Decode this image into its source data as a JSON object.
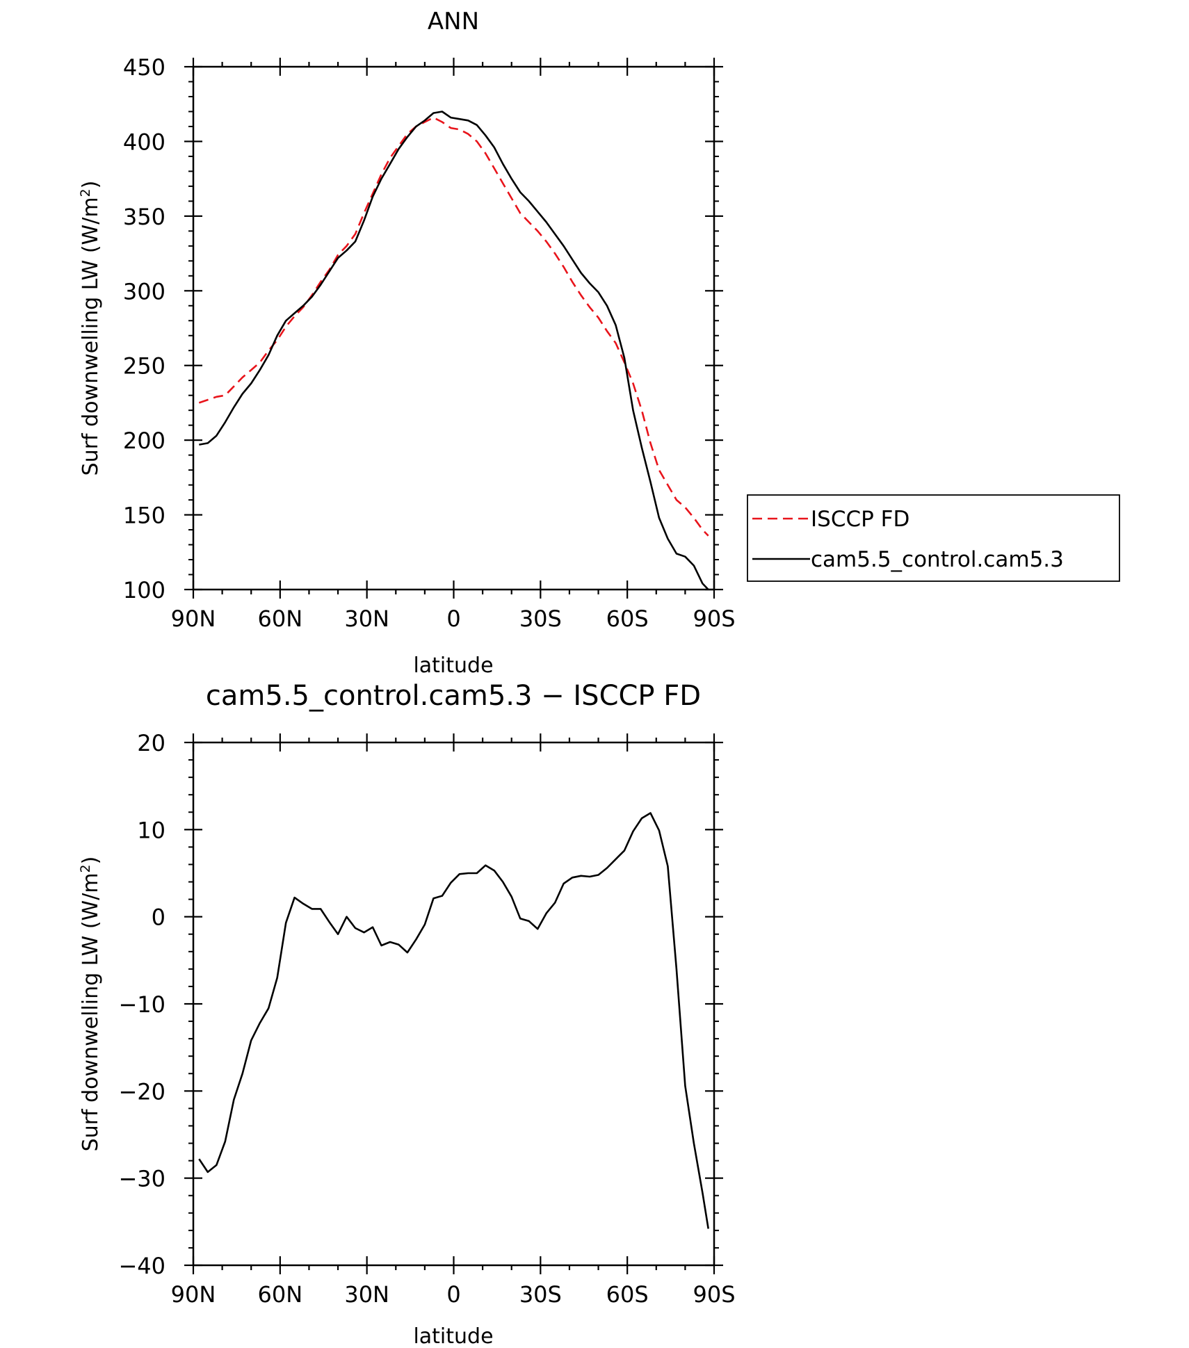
{
  "chart_data": [
    {
      "type": "line",
      "title": "ANN",
      "xlabel": "latitude",
      "ylabel": "Surf downwelling LW (W/m²)",
      "ylabel_main": "Surf downwelling LW (W/m",
      "ylabel_sup": "2",
      "ylabel_close": ")",
      "xlim": [
        90,
        -90
      ],
      "ylim": [
        100,
        450
      ],
      "x_ticks": [
        90,
        60,
        30,
        0,
        -30,
        -60,
        -90
      ],
      "x_tick_labels": [
        "90N",
        "60N",
        "30N",
        "0",
        "30S",
        "60S",
        "90S"
      ],
      "y_ticks": [
        100,
        150,
        200,
        250,
        300,
        350,
        400,
        450
      ],
      "y_tick_labels": [
        "100",
        "150",
        "200",
        "250",
        "300",
        "350",
        "400",
        "450"
      ],
      "legend_position": "right",
      "series": [
        {
          "name": "ISCCP FD",
          "color": "#e8141b",
          "style": "dashed",
          "x": [
            88,
            85,
            82,
            79,
            76,
            73,
            70,
            67,
            64,
            61,
            58,
            55,
            52,
            49,
            46,
            43,
            40,
            37,
            34,
            31,
            28,
            25,
            22,
            19,
            16,
            13,
            10,
            7,
            4,
            1,
            -2,
            -5,
            -8,
            -11,
            -14,
            -17,
            -20,
            -23,
            -26,
            -29,
            -32,
            -35,
            -38,
            -41,
            -44,
            -47,
            -50,
            -53,
            -56,
            -59,
            -62,
            -65,
            -68,
            -71,
            -74,
            -77,
            -80,
            -83,
            -86,
            -88
          ],
          "y": [
            225,
            227,
            229,
            230,
            236,
            242,
            247,
            252,
            260,
            267,
            276,
            283,
            289,
            297,
            306,
            314,
            324,
            330,
            338,
            352,
            365,
            378,
            389,
            397,
            405,
            410,
            413,
            416,
            413,
            409,
            408,
            405,
            400,
            392,
            382,
            372,
            362,
            352,
            346,
            340,
            333,
            325,
            316,
            306,
            297,
            289,
            282,
            273,
            265,
            252,
            238,
            220,
            198,
            180,
            170,
            160,
            155,
            148,
            140,
            136
          ]
        },
        {
          "name": "cam5.5_control.cam5.3",
          "color": "#000000",
          "style": "solid",
          "x": [
            88,
            85,
            82,
            79,
            76,
            73,
            70,
            67,
            64,
            61,
            58,
            55,
            52,
            49,
            46,
            43,
            40,
            37,
            34,
            31,
            28,
            25,
            22,
            19,
            16,
            13,
            10,
            7,
            4,
            1,
            -2,
            -5,
            -8,
            -11,
            -14,
            -17,
            -20,
            -23,
            -26,
            -29,
            -32,
            -35,
            -38,
            -41,
            -44,
            -47,
            -50,
            -53,
            -56,
            -59,
            -62,
            -65,
            -68,
            -71,
            -74,
            -77,
            -80,
            -83,
            -86,
            -88
          ],
          "y": [
            197,
            198,
            203,
            212,
            222,
            231,
            238,
            247,
            257,
            270,
            280,
            285,
            290,
            296,
            304,
            313,
            322,
            327,
            333,
            347,
            363,
            375,
            385,
            395,
            403,
            410,
            414,
            419,
            420,
            416,
            415,
            414,
            411,
            404,
            396,
            385,
            375,
            366,
            360,
            353,
            346,
            338,
            330,
            321,
            312,
            305,
            299,
            290,
            277,
            255,
            220,
            195,
            172,
            148,
            134,
            124,
            122,
            116,
            104,
            100
          ]
        }
      ]
    },
    {
      "type": "line",
      "title": "cam5.5_control.cam5.3 − ISCCP FD",
      "xlabel": "latitude",
      "ylabel": "Surf downwelling LW (W/m²)",
      "ylabel_main": "Surf downwelling LW (W/m",
      "ylabel_sup": "2",
      "ylabel_close": ")",
      "xlim": [
        90,
        -90
      ],
      "ylim": [
        -40,
        20
      ],
      "x_ticks": [
        90,
        60,
        30,
        0,
        -30,
        -60,
        -90
      ],
      "x_tick_labels": [
        "90N",
        "60N",
        "30N",
        "0",
        "30S",
        "60S",
        "90S"
      ],
      "y_ticks": [
        -40,
        -30,
        -20,
        -10,
        0,
        10,
        20
      ],
      "y_tick_labels": [
        "−40",
        "−30",
        "−20",
        "−10",
        "0",
        "10",
        "20"
      ],
      "series": [
        {
          "name": "",
          "color": "#000000",
          "style": "solid",
          "x": [
            88,
            85,
            82,
            79,
            76,
            73,
            70,
            67,
            64,
            61,
            58,
            55,
            52,
            49,
            46,
            43,
            40,
            37,
            34,
            31,
            28,
            25,
            22,
            19,
            16,
            13,
            10,
            7,
            4,
            1,
            -2,
            -5,
            -8,
            -11,
            -14,
            -17,
            -20,
            -23,
            -26,
            -29,
            -32,
            -35,
            -38,
            -41,
            -44,
            -47,
            -50,
            -53,
            -56,
            -59,
            -62,
            -65,
            -68,
            -71,
            -74,
            -77,
            -80,
            -83,
            -86,
            -88
          ],
          "y": [
            -27.8,
            -29.3,
            -28.5,
            -25.8,
            -21.0,
            -18.0,
            -14.2,
            -12.2,
            -10.5,
            -7.0,
            -0.7,
            2.2,
            1.5,
            0.9,
            0.9,
            -0.6,
            -2.0,
            0.0,
            -1.3,
            -1.8,
            -1.2,
            -3.3,
            -2.9,
            -3.2,
            -4.1,
            -2.6,
            -0.9,
            2.1,
            2.4,
            3.9,
            4.9,
            5.0,
            5.0,
            5.9,
            5.3,
            4.0,
            2.3,
            -0.2,
            -0.5,
            -1.4,
            0.4,
            1.6,
            3.8,
            4.5,
            4.7,
            4.6,
            4.8,
            5.6,
            6.6,
            7.6,
            9.8,
            11.3,
            11.9,
            9.9,
            5.8,
            -6.0,
            -19.4,
            -26.0,
            -31.7,
            -35.8
          ]
        }
      ]
    }
  ],
  "legend": {
    "items": [
      {
        "label": "ISCCP FD",
        "color": "#e8141b",
        "style": "dashed"
      },
      {
        "label": "cam5.5_control.cam5.3",
        "color": "#000000",
        "style": "solid"
      }
    ]
  }
}
